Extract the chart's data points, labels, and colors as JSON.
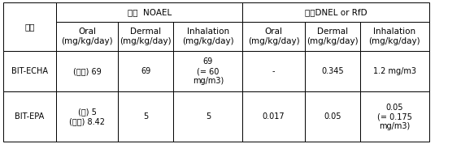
{
  "col_header_row1": [
    "",
    "랫드  NOAEL",
    "",
    "",
    "기존DNEL or RfD",
    "",
    ""
  ],
  "col_header_row2": [
    "기존",
    "Oral\n(mg/kg/day)",
    "Dermal\n(mg/kg/day)",
    "Inhalation\n(mg/kg/day)",
    "Oral\n(mg/kg/day)",
    "Dermal\n(mg/kg/day)",
    "Inhalation\n(mg/kg/day)"
  ],
  "rows": [
    [
      "BIT-ECHA",
      "(랫드) 69",
      "69",
      "69\n(= 60\nmg/m3)",
      "-",
      "0.345",
      "1.2 mg/m3"
    ],
    [
      "BIT-EPA",
      "(개) 5\n(랫드) 8.42",
      "5",
      "5",
      "0.017",
      "0.05",
      "0.05\n(= 0.175\nmg/m3)"
    ]
  ],
  "background_color": "#ffffff",
  "border_color": "#000000",
  "text_color": "#000000",
  "font_size": 7.0,
  "header_font_size": 7.5
}
